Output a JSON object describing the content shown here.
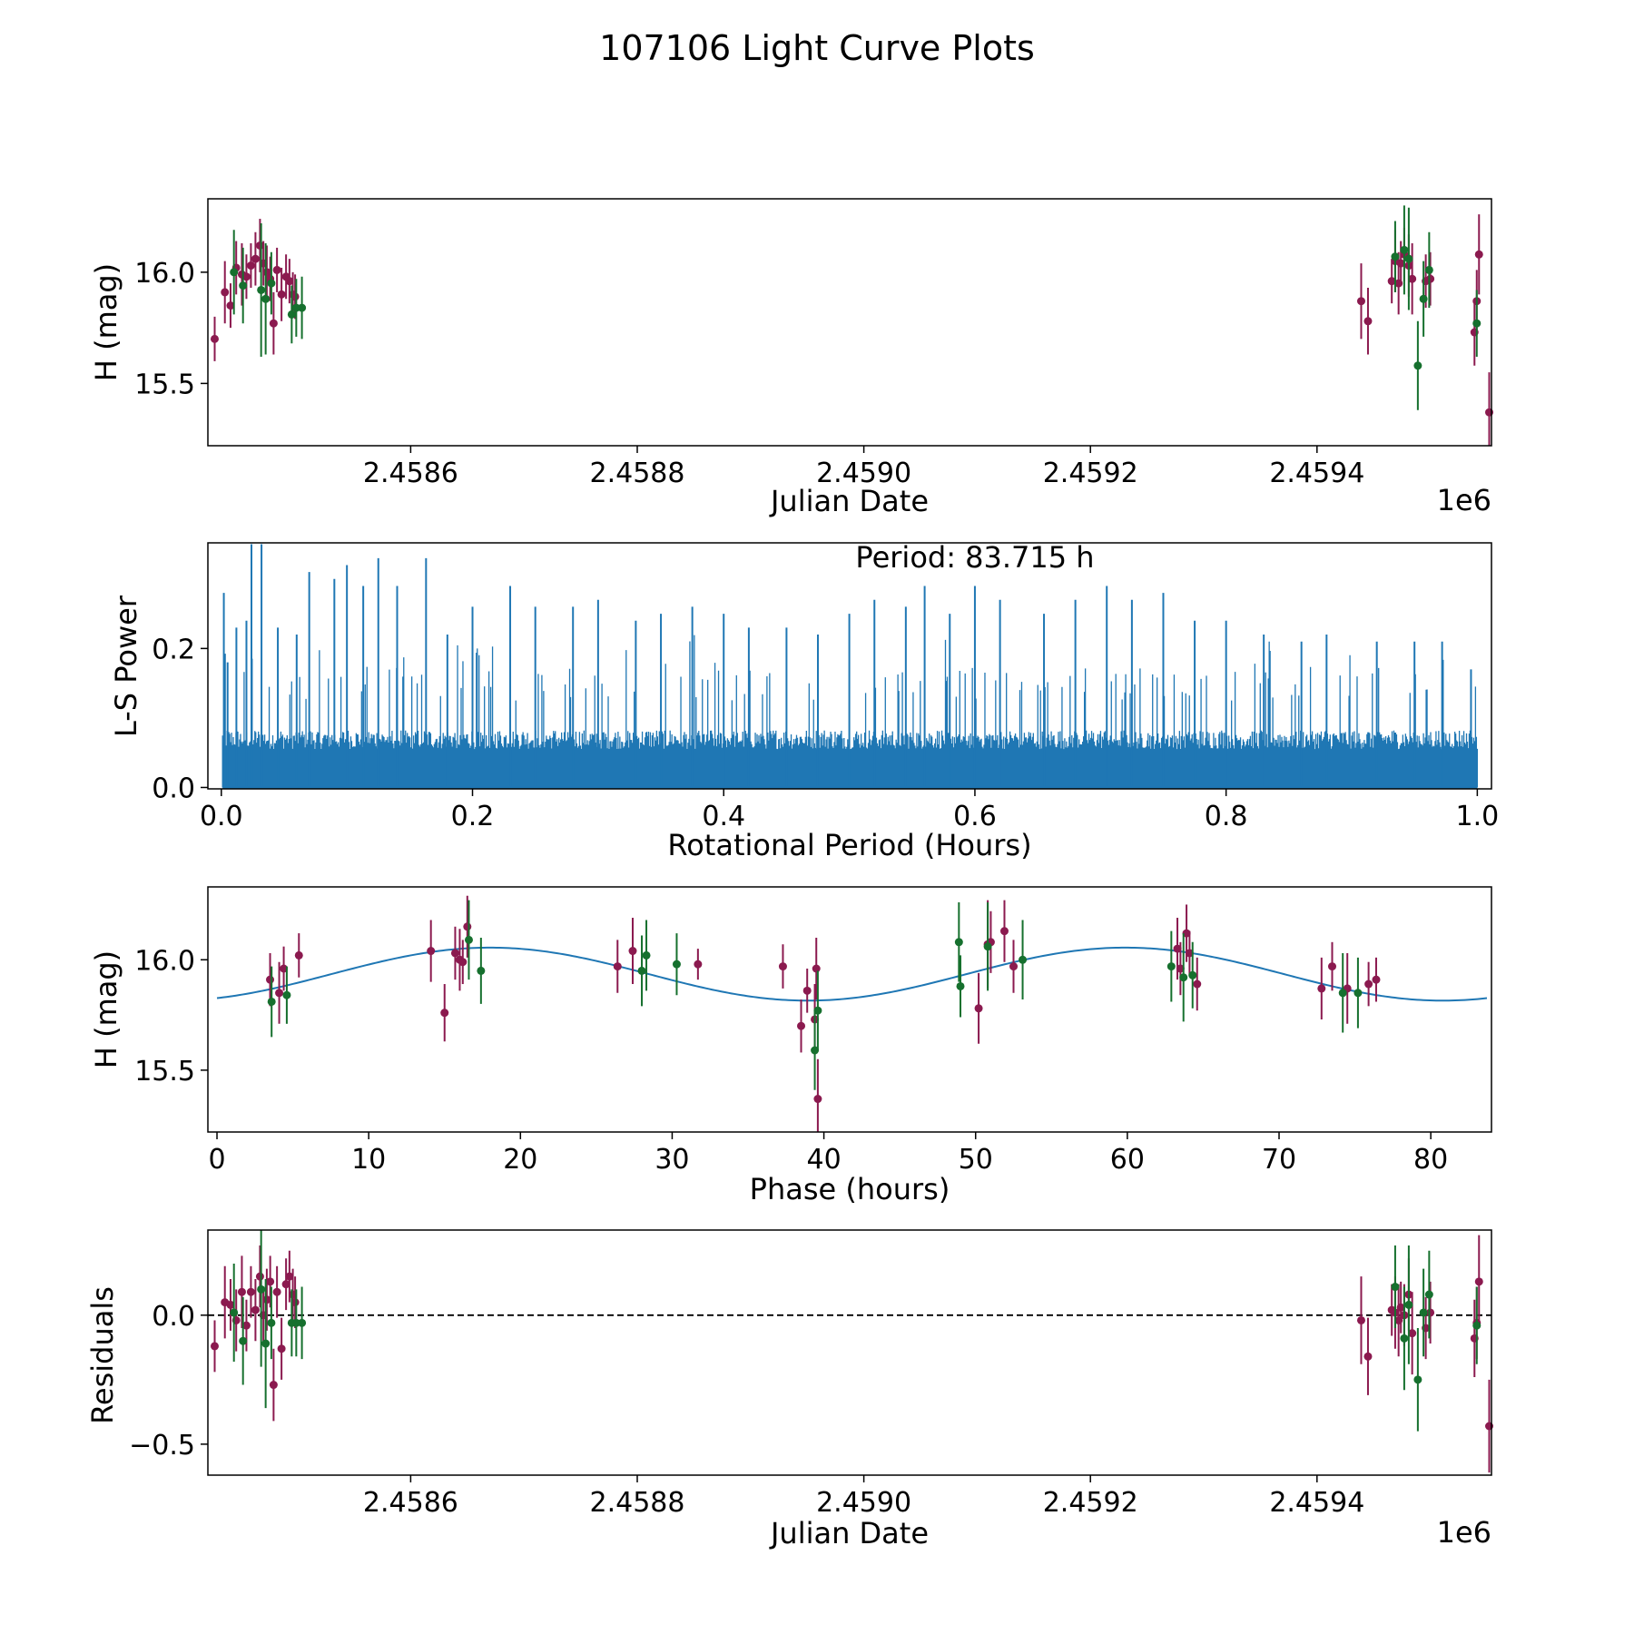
{
  "figure": {
    "title": "107106 Light Curve Plots"
  },
  "colors": {
    "purple": "#8b1a4f",
    "green": "#16702e",
    "blue": "#1f77b4",
    "axis": "#000000"
  },
  "chart_data": [
    {
      "id": "lightcurve",
      "type": "scatter",
      "xlabel": "Julian Date",
      "ylabel": "H (mag)",
      "offset_label": "1e6",
      "xlim": [
        2458421,
        2459554
      ],
      "ylim": [
        15.22,
        16.33
      ],
      "xticks": [
        2458600,
        2458800,
        2459000,
        2459200,
        2459400
      ],
      "xtick_labels": [
        "2.4586",
        "2.4588",
        "2.4590",
        "2.4592",
        "2.4594"
      ],
      "yticks": [
        15.5,
        16.0
      ],
      "ytick_labels": [
        "15.5",
        "16.0"
      ],
      "series": [
        {
          "name": "purple",
          "x": [
            2458427,
            2458436,
            2458441,
            2458446,
            2458451,
            2458455,
            2458459,
            2458463,
            2458467,
            2458470,
            2458473,
            2458476,
            2458479,
            2458482,
            2458486,
            2458490,
            2458493,
            2458496,
            2458498,
            2459439,
            2459445,
            2459466,
            2459469,
            2459472,
            2459474,
            2459477,
            2459481,
            2459484,
            2459496,
            2459500,
            2459539,
            2459541,
            2459543,
            2459552
          ],
          "y": [
            15.7,
            15.91,
            15.85,
            16.02,
            15.99,
            15.98,
            16.03,
            16.06,
            16.12,
            16.04,
            16.0,
            15.97,
            15.77,
            16.01,
            15.9,
            15.98,
            15.96,
            15.9,
            15.89,
            15.87,
            15.78,
            15.96,
            16.05,
            15.95,
            16.04,
            16.08,
            16.03,
            15.97,
            15.96,
            15.97,
            15.73,
            15.87,
            16.08,
            15.37
          ],
          "err": [
            0.1,
            0.14,
            0.1,
            0.12,
            0.14,
            0.1,
            0.1,
            0.12,
            0.12,
            0.1,
            0.12,
            0.1,
            0.14,
            0.1,
            0.12,
            0.1,
            0.1,
            0.1,
            0.1,
            0.17,
            0.15,
            0.1,
            0.14,
            0.14,
            0.1,
            0.12,
            0.14,
            0.16,
            0.12,
            0.12,
            0.15,
            0.14,
            0.18,
            0.18
          ]
        },
        {
          "name": "green",
          "x": [
            2458444,
            2458452,
            2458468,
            2458472,
            2458477,
            2458495,
            2458499,
            2458504,
            2459469,
            2459477,
            2459481,
            2459489,
            2459494,
            2459499,
            2459541
          ],
          "y": [
            16.0,
            15.94,
            15.92,
            15.88,
            15.95,
            15.81,
            15.84,
            15.84,
            16.07,
            16.1,
            16.06,
            15.58,
            15.88,
            16.01,
            15.77
          ],
          "err": [
            0.19,
            0.17,
            0.3,
            0.25,
            0.14,
            0.13,
            0.13,
            0.14,
            0.16,
            0.2,
            0.23,
            0.2,
            0.17,
            0.17,
            0.15
          ]
        }
      ]
    },
    {
      "id": "periodogram",
      "type": "line",
      "xlabel": "Rotational Period (Hours)",
      "ylabel": "L-S Power",
      "annotation": "Period: 83.715 h",
      "xlim": [
        -0.0107,
        1.0113
      ],
      "ylim": [
        -0.002,
        0.352
      ],
      "xticks": [
        0.0,
        0.2,
        0.4,
        0.6,
        0.8,
        1.0
      ],
      "xtick_labels": [
        "0.0",
        "0.2",
        "0.4",
        "0.6",
        "0.8",
        "1.0"
      ],
      "yticks": [
        0.0,
        0.2
      ],
      "ytick_labels": [
        "0.0",
        "0.2"
      ],
      "x_range": [
        0.001,
        1.0
      ],
      "baseline_power": 0.085,
      "peaks": [
        {
          "x": 0.002,
          "y": 0.28
        },
        {
          "x": 0.005,
          "y": 0.18
        },
        {
          "x": 0.012,
          "y": 0.23
        },
        {
          "x": 0.02,
          "y": 0.24
        },
        {
          "x": 0.024,
          "y": 0.35
        },
        {
          "x": 0.032,
          "y": 0.35
        },
        {
          "x": 0.045,
          "y": 0.23
        },
        {
          "x": 0.06,
          "y": 0.22
        },
        {
          "x": 0.07,
          "y": 0.31
        },
        {
          "x": 0.09,
          "y": 0.3
        },
        {
          "x": 0.1,
          "y": 0.32
        },
        {
          "x": 0.113,
          "y": 0.29
        },
        {
          "x": 0.125,
          "y": 0.33
        },
        {
          "x": 0.14,
          "y": 0.29
        },
        {
          "x": 0.163,
          "y": 0.33
        },
        {
          "x": 0.18,
          "y": 0.22
        },
        {
          "x": 0.2,
          "y": 0.26
        },
        {
          "x": 0.23,
          "y": 0.29
        },
        {
          "x": 0.25,
          "y": 0.26
        },
        {
          "x": 0.28,
          "y": 0.26
        },
        {
          "x": 0.3,
          "y": 0.27
        },
        {
          "x": 0.33,
          "y": 0.24
        },
        {
          "x": 0.35,
          "y": 0.25
        },
        {
          "x": 0.375,
          "y": 0.26
        },
        {
          "x": 0.4,
          "y": 0.25
        },
        {
          "x": 0.42,
          "y": 0.23
        },
        {
          "x": 0.45,
          "y": 0.23
        },
        {
          "x": 0.475,
          "y": 0.22
        },
        {
          "x": 0.5,
          "y": 0.25
        },
        {
          "x": 0.52,
          "y": 0.27
        },
        {
          "x": 0.545,
          "y": 0.26
        },
        {
          "x": 0.56,
          "y": 0.29
        },
        {
          "x": 0.58,
          "y": 0.25
        },
        {
          "x": 0.6,
          "y": 0.29
        },
        {
          "x": 0.62,
          "y": 0.27
        },
        {
          "x": 0.655,
          "y": 0.25
        },
        {
          "x": 0.68,
          "y": 0.27
        },
        {
          "x": 0.705,
          "y": 0.29
        },
        {
          "x": 0.725,
          "y": 0.27
        },
        {
          "x": 0.75,
          "y": 0.28
        },
        {
          "x": 0.775,
          "y": 0.24
        },
        {
          "x": 0.8,
          "y": 0.24
        },
        {
          "x": 0.83,
          "y": 0.22
        },
        {
          "x": 0.86,
          "y": 0.21
        },
        {
          "x": 0.88,
          "y": 0.22
        },
        {
          "x": 0.92,
          "y": 0.21
        },
        {
          "x": 0.95,
          "y": 0.21
        },
        {
          "x": 0.972,
          "y": 0.21
        },
        {
          "x": 0.995,
          "y": 0.17
        }
      ]
    },
    {
      "id": "phased",
      "type": "scatter",
      "xlabel": "Phase (hours)",
      "ylabel": "H (mag)",
      "xlim": [
        -0.6,
        84.0
      ],
      "ylim": [
        15.22,
        16.33
      ],
      "xticks": [
        0,
        10,
        20,
        30,
        40,
        50,
        60,
        70,
        80
      ],
      "xtick_labels": [
        "0",
        "10",
        "20",
        "30",
        "40",
        "50",
        "60",
        "70",
        "80"
      ],
      "yticks": [
        15.5,
        16.0
      ],
      "ytick_labels": [
        "15.5",
        "16.0"
      ],
      "model": {
        "name": "fit",
        "mean": 15.935,
        "amplitude": 0.12,
        "period": 41.86,
        "peak_phase": 18.0,
        "x_range": [
          0,
          83.7
        ]
      },
      "series": [
        {
          "name": "purple",
          "x": [
            3.5,
            4.1,
            4.4,
            5.4,
            14.1,
            15.0,
            15.7,
            16.0,
            16.2,
            16.5,
            26.4,
            27.4,
            31.7,
            37.3,
            38.5,
            38.9,
            39.4,
            39.5,
            39.6,
            50.2,
            50.8,
            51.0,
            51.9,
            52.5,
            63.3,
            63.5,
            63.9,
            64.1,
            64.6,
            72.8,
            73.5,
            74.5,
            75.9,
            76.4
          ],
          "y": [
            15.91,
            15.85,
            15.96,
            16.02,
            16.04,
            15.76,
            16.03,
            16.0,
            15.99,
            16.15,
            15.97,
            16.04,
            15.98,
            15.97,
            15.7,
            15.86,
            15.73,
            15.96,
            15.37,
            15.78,
            16.07,
            16.08,
            16.13,
            15.97,
            16.05,
            15.96,
            16.12,
            16.03,
            15.89,
            15.87,
            15.97,
            15.87,
            15.89,
            15.91
          ],
          "err": [
            0.12,
            0.14,
            0.1,
            0.1,
            0.14,
            0.13,
            0.12,
            0.14,
            0.1,
            0.14,
            0.12,
            0.15,
            0.07,
            0.1,
            0.12,
            0.1,
            0.16,
            0.14,
            0.18,
            0.16,
            0.2,
            0.14,
            0.14,
            0.12,
            0.14,
            0.12,
            0.13,
            0.1,
            0.12,
            0.14,
            0.11,
            0.16,
            0.1,
            0.1
          ]
        },
        {
          "name": "green",
          "x": [
            3.6,
            4.6,
            16.6,
            17.4,
            28.0,
            28.3,
            30.3,
            39.4,
            39.6,
            48.9,
            49.0,
            50.8,
            53.1,
            62.9,
            63.7,
            64.3,
            74.2,
            75.2
          ],
          "y": [
            15.81,
            15.84,
            16.09,
            15.95,
            15.95,
            16.02,
            15.98,
            15.59,
            15.77,
            16.08,
            15.88,
            16.06,
            16.0,
            15.97,
            15.92,
            15.93,
            15.85,
            15.85
          ],
          "err": [
            0.16,
            0.13,
            0.18,
            0.15,
            0.16,
            0.16,
            0.14,
            0.18,
            0.18,
            0.18,
            0.14,
            0.2,
            0.18,
            0.16,
            0.2,
            0.15,
            0.18,
            0.16
          ]
        }
      ]
    },
    {
      "id": "residuals",
      "type": "scatter",
      "xlabel": "Julian Date",
      "ylabel": "Residuals",
      "offset_label": "1e6",
      "xlim": [
        2458421,
        2459554
      ],
      "ylim": [
        -0.62,
        0.33
      ],
      "xticks": [
        2458600,
        2458800,
        2459000,
        2459200,
        2459400
      ],
      "xtick_labels": [
        "2.4586",
        "2.4588",
        "2.4590",
        "2.4592",
        "2.4594"
      ],
      "yticks": [
        -0.5,
        0.0
      ],
      "ytick_labels": [
        "−0.5",
        "0.0"
      ],
      "zero_line": 0.0,
      "series": [
        {
          "name": "purple",
          "x": [
            2458427,
            2458436,
            2458441,
            2458446,
            2458451,
            2458455,
            2458459,
            2458463,
            2458467,
            2458470,
            2458473,
            2458476,
            2458479,
            2458482,
            2458486,
            2458490,
            2458493,
            2458496,
            2458498,
            2459439,
            2459445,
            2459466,
            2459469,
            2459472,
            2459474,
            2459477,
            2459481,
            2459484,
            2459496,
            2459500,
            2459539,
            2459541,
            2459543,
            2459552
          ],
          "y": [
            -0.12,
            0.05,
            0.04,
            -0.02,
            0.09,
            -0.04,
            0.09,
            0.02,
            0.15,
            0.0,
            0.06,
            0.13,
            -0.27,
            0.09,
            -0.13,
            0.12,
            0.15,
            0.08,
            0.05,
            -0.02,
            -0.16,
            0.02,
            0.01,
            -0.02,
            0.03,
            0.0,
            0.08,
            -0.07,
            -0.05,
            0.01,
            -0.09,
            -0.03,
            0.13,
            -0.43
          ],
          "err": [
            0.1,
            0.14,
            0.1,
            0.12,
            0.14,
            0.1,
            0.1,
            0.12,
            0.12,
            0.1,
            0.12,
            0.1,
            0.14,
            0.1,
            0.12,
            0.1,
            0.1,
            0.1,
            0.1,
            0.17,
            0.15,
            0.1,
            0.14,
            0.14,
            0.1,
            0.12,
            0.14,
            0.16,
            0.12,
            0.12,
            0.15,
            0.14,
            0.18,
            0.18
          ]
        },
        {
          "name": "green",
          "x": [
            2458444,
            2458452,
            2458468,
            2458472,
            2458477,
            2458495,
            2458499,
            2458504,
            2459469,
            2459477,
            2459481,
            2459489,
            2459494,
            2459499,
            2459541
          ],
          "y": [
            0.01,
            -0.1,
            0.1,
            -0.11,
            -0.03,
            -0.03,
            -0.03,
            -0.03,
            0.11,
            -0.09,
            0.04,
            -0.25,
            0.01,
            0.08,
            -0.04
          ],
          "err": [
            0.19,
            0.17,
            0.3,
            0.25,
            0.14,
            0.13,
            0.13,
            0.14,
            0.16,
            0.2,
            0.23,
            0.2,
            0.17,
            0.17,
            0.15
          ]
        }
      ]
    }
  ]
}
